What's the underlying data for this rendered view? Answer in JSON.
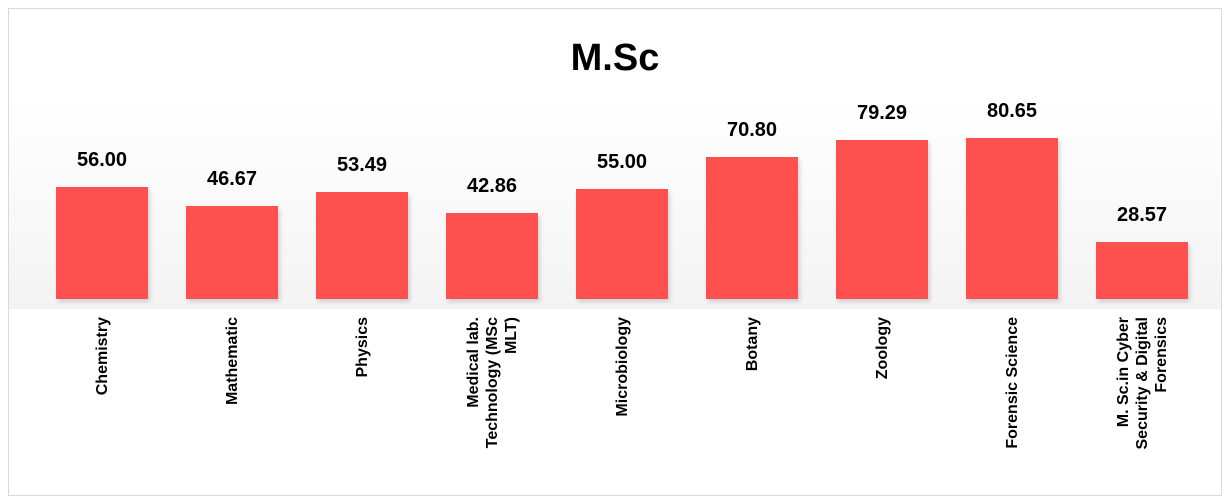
{
  "chart_data": {
    "type": "bar",
    "title": "M.Sc",
    "categories": [
      "Chemistry",
      "Mathematic",
      "Physics",
      "Medical lab. Technology (MSc MLT)",
      "Microbiology",
      "Botany",
      "Zoology",
      "Forensic Science",
      "M. Sc.in Cyber Security & Digital Forensics"
    ],
    "values": [
      56.0,
      46.67,
      53.49,
      42.86,
      55.0,
      70.8,
      79.29,
      80.65,
      28.57
    ],
    "value_labels": [
      "56.00",
      "46.67",
      "53.49",
      "42.86",
      "55.00",
      "70.80",
      "79.29",
      "80.65",
      "28.57"
    ],
    "color": "#ff5050"
  }
}
